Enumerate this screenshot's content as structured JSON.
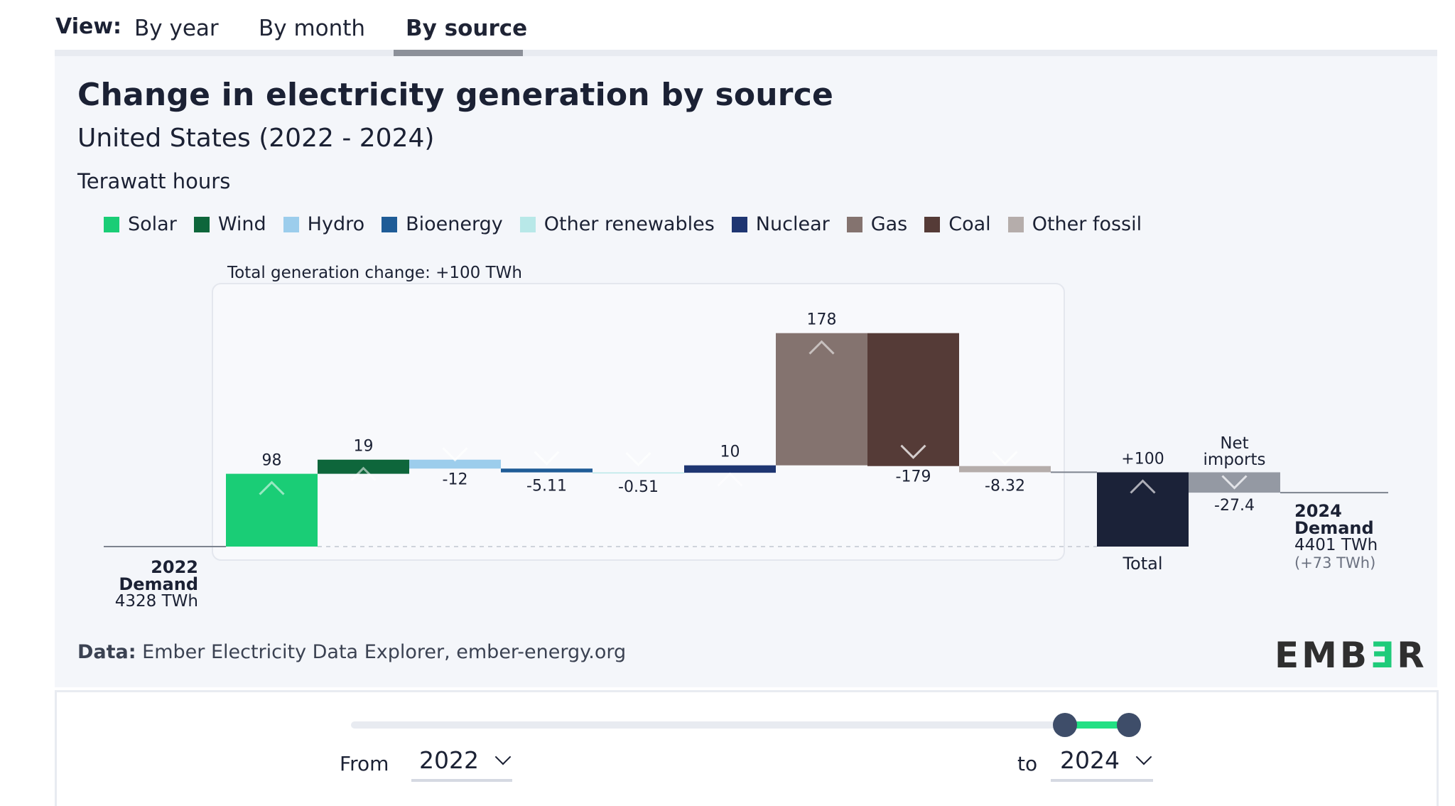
{
  "view_tabs": {
    "label": "View:",
    "tabs": [
      {
        "label": "By year",
        "active": false
      },
      {
        "label": "By month",
        "active": false
      },
      {
        "label": "By source",
        "active": true
      }
    ]
  },
  "panel": {
    "title": "Change in electricity generation by source",
    "subtitle": "United States (2022 - 2024)",
    "unit": "Terawatt hours",
    "source_prefix": "Data:",
    "source_text": " Ember Electricity Data Explorer, ember-energy.org",
    "logo": {
      "part1": "EMB",
      "part2": "Ǝ",
      "part3": "R",
      "accent": "#1fcb7a"
    }
  },
  "controls": {
    "from_label": "From",
    "from_value": "2022",
    "to_label": "to",
    "to_value": "2024",
    "slider_range_fraction": [
      0.918,
      1.0
    ],
    "slider_fill_color": "#22e083"
  },
  "chart_data": {
    "type": "waterfall",
    "title": "Change in electricity generation by source",
    "subtitle": "United States (2022 - 2024)",
    "ylabel": "Terawatt hours",
    "grid": false,
    "legend_position": "top",
    "group_label": "Total generation change: +100 TWh",
    "start": {
      "label_year": "2022",
      "label": "Demand",
      "value_text": "4328 TWh",
      "value": 4328
    },
    "end": {
      "label_year": "2024",
      "label": "Demand",
      "value_text": "4401 TWh",
      "change_text": "(+73 TWh)",
      "value": 4401
    },
    "categories": [
      "Solar",
      "Wind",
      "Hydro",
      "Bioenergy",
      "Other renewables",
      "Nuclear",
      "Gas",
      "Coal",
      "Other fossil"
    ],
    "series": [
      {
        "name": "Solar",
        "value": 98,
        "label": "98",
        "color": "#1acd76"
      },
      {
        "name": "Wind",
        "value": 19,
        "label": "19",
        "color": "#0e663b"
      },
      {
        "name": "Hydro",
        "value": -12,
        "label": "-12",
        "color": "#9ccdec"
      },
      {
        "name": "Bioenergy",
        "value": -5.11,
        "label": "-5.11",
        "color": "#1f5c97"
      },
      {
        "name": "Other renewables",
        "value": -0.51,
        "label": "-0.51",
        "color": "#b8e8e8"
      },
      {
        "name": "Nuclear",
        "value": 10,
        "label": "10",
        "color": "#1f3672"
      },
      {
        "name": "Gas",
        "value": 178,
        "label": "178",
        "color": "#84736f"
      },
      {
        "name": "Coal",
        "value": -179,
        "label": "-179",
        "color": "#553b37"
      },
      {
        "name": "Other fossil",
        "value": -8.32,
        "label": "-8.32",
        "color": "#b5adab"
      }
    ],
    "total": {
      "name": "Total",
      "value": 100,
      "label": "+100",
      "color": "#1b2238"
    },
    "net_imports": {
      "name": "Net imports",
      "name_lines": [
        "Net",
        "imports"
      ],
      "value": -27.4,
      "label": "-27.4",
      "color": "#9499a3"
    }
  }
}
